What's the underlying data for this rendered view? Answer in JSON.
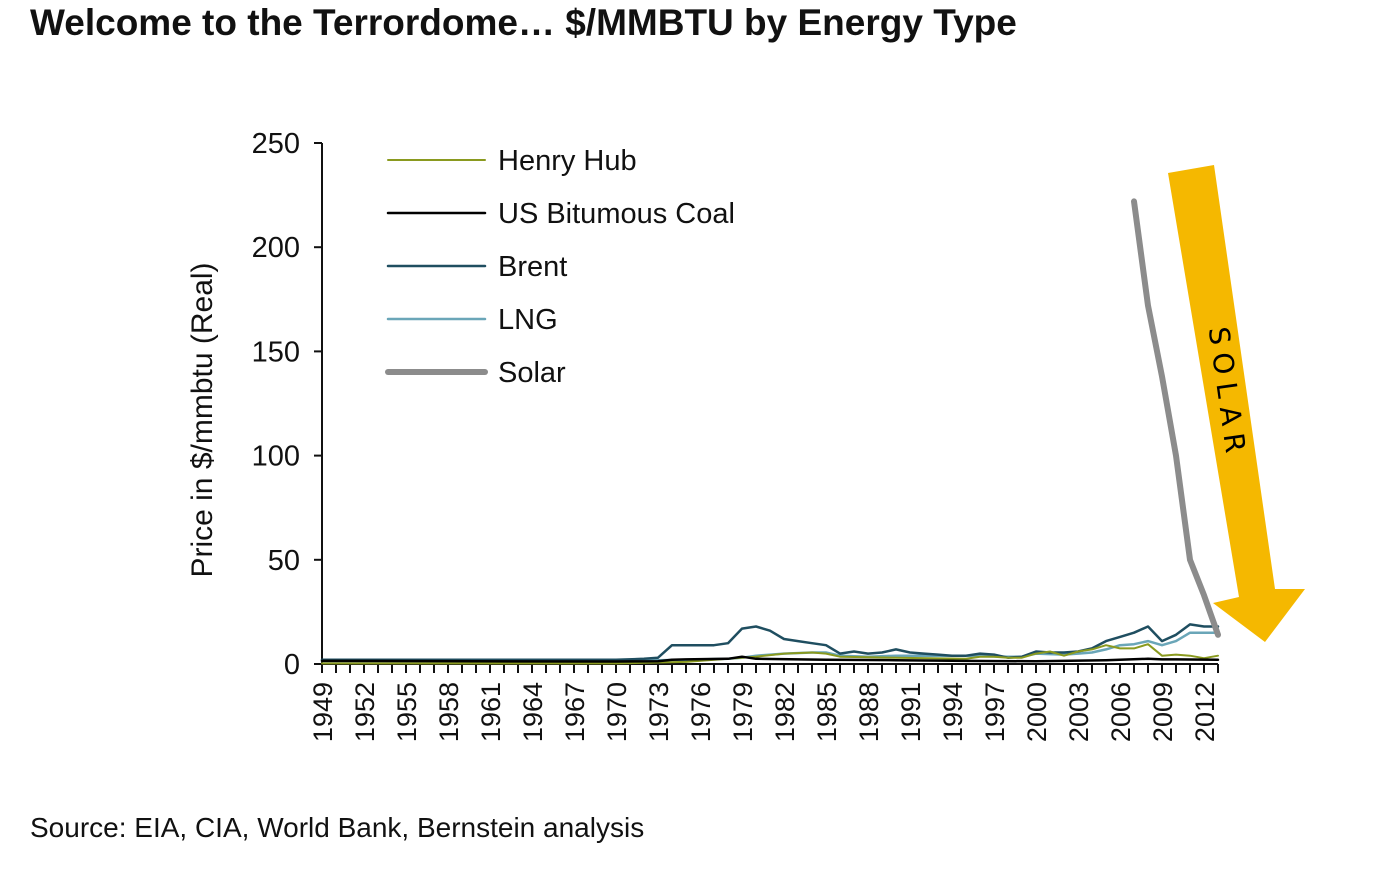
{
  "title": "Welcome to the Terrordome… $/MMBTU by Energy Type",
  "source": "Source: EIA, CIA, World Bank, Bernstein analysis",
  "annotation": {
    "text": "SOLAR",
    "color": "#f5b800"
  },
  "chart_data": {
    "type": "line",
    "ylabel": "Price in $/mmbtu (Real)",
    "xlabel": "",
    "ylim": [
      0,
      250
    ],
    "yticks": [
      0,
      50,
      100,
      150,
      200,
      250
    ],
    "xlim": [
      1949,
      2013
    ],
    "xticks": [
      1949,
      1952,
      1955,
      1958,
      1961,
      1964,
      1967,
      1970,
      1973,
      1976,
      1979,
      1982,
      1985,
      1988,
      1991,
      1994,
      1997,
      2000,
      2003,
      2006,
      2009,
      2012
    ],
    "grid": false,
    "legend": "top-left",
    "series": [
      {
        "name": "Henry Hub",
        "color": "#8a9a1f",
        "width": 2,
        "x": [
          1949,
          1960,
          1970,
          1975,
          1978,
          1980,
          1982,
          1984,
          1985,
          1986,
          1990,
          1995,
          1996,
          1997,
          1998,
          1999,
          2000,
          2001,
          2002,
          2003,
          2004,
          2005,
          2006,
          2007,
          2008,
          2009,
          2010,
          2011,
          2012,
          2013
        ],
        "y": [
          0.3,
          0.3,
          0.3,
          1,
          2.5,
          3.5,
          5,
          5.5,
          5,
          3.5,
          3,
          2.5,
          3.5,
          3.5,
          3,
          3,
          5,
          6,
          4,
          6,
          7,
          9,
          7.5,
          7.5,
          9.5,
          4,
          4.5,
          4,
          2.8,
          4
        ]
      },
      {
        "name": "US Bitumous Coal",
        "color": "#000000",
        "width": 2.5,
        "x": [
          1949,
          1960,
          1970,
          1973,
          1974,
          1975,
          1978,
          1979,
          1980,
          1985,
          1990,
          1995,
          2000,
          2005,
          2008,
          2009,
          2010,
          2012,
          2013
        ],
        "y": [
          1.5,
          1.3,
          1.2,
          1.3,
          2,
          2.2,
          2.5,
          3.5,
          2.5,
          2,
          1.8,
          1.5,
          1.3,
          1.8,
          2.5,
          2.2,
          2.2,
          2.1,
          2
        ]
      },
      {
        "name": "Brent",
        "color": "#1f4e60",
        "width": 2.5,
        "x": [
          1949,
          1960,
          1970,
          1972,
          1973,
          1974,
          1975,
          1976,
          1977,
          1978,
          1979,
          1980,
          1981,
          1982,
          1983,
          1984,
          1985,
          1986,
          1987,
          1988,
          1989,
          1990,
          1991,
          1992,
          1993,
          1994,
          1995,
          1996,
          1997,
          1998,
          1999,
          2000,
          2001,
          2002,
          2003,
          2004,
          2005,
          2006,
          2007,
          2008,
          2009,
          2010,
          2011,
          2012,
          2013
        ],
        "y": [
          2,
          2,
          2,
          2.5,
          3,
          9,
          9,
          9,
          9,
          10,
          17,
          18,
          16,
          12,
          11,
          10,
          9,
          5,
          6,
          5,
          5.5,
          7,
          5.5,
          5,
          4.5,
          4,
          4,
          5,
          4.5,
          3,
          3.5,
          6,
          5.5,
          5.5,
          6,
          7.5,
          11,
          13,
          15,
          18,
          11,
          14,
          19,
          18,
          18
        ]
      },
      {
        "name": "LNG",
        "color": "#6aa6b8",
        "width": 2.5,
        "x": [
          1949,
          1970,
          1975,
          1978,
          1979,
          1980,
          1982,
          1984,
          1985,
          1986,
          1988,
          1990,
          1992,
          1995,
          1998,
          1999,
          2000,
          2002,
          2003,
          2004,
          2005,
          2006,
          2007,
          2008,
          2009,
          2010,
          2011,
          2012,
          2013
        ],
        "y": [
          1.5,
          1.5,
          2,
          2.5,
          3,
          4,
          5,
          5.5,
          5.5,
          4,
          3.5,
          4,
          4,
          4,
          3.5,
          3.5,
          5,
          4.5,
          5,
          5.5,
          7,
          9,
          9.5,
          11,
          9,
          11,
          15,
          15,
          15
        ]
      },
      {
        "name": "Solar",
        "color": "#8c8c8c",
        "width": 6,
        "x": [
          2007,
          2008,
          2009,
          2010,
          2011,
          2012,
          2013
        ],
        "y": [
          222,
          172,
          138,
          100,
          50,
          33,
          14
        ]
      }
    ]
  }
}
